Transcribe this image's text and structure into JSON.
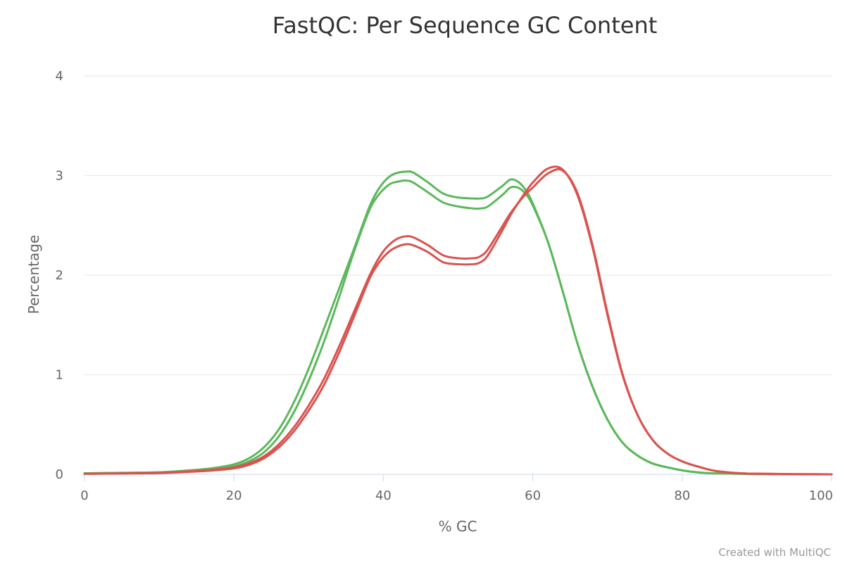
{
  "chart_data": {
    "type": "line",
    "title": "FastQC: Per Sequence GC Content",
    "xlabel": "% GC",
    "ylabel": "Percentage",
    "xlim": [
      0,
      100
    ],
    "ylim": [
      0,
      4
    ],
    "x_ticks": [
      "0",
      "20",
      "40",
      "60",
      "80",
      "100"
    ],
    "y_ticks": [
      "0",
      "1",
      "2",
      "3",
      "4"
    ],
    "grid": true,
    "x": [
      0,
      5,
      10,
      14,
      17,
      20,
      22,
      24,
      26,
      28,
      30,
      32,
      34,
      36,
      38,
      39,
      40,
      41,
      42,
      43,
      44,
      46,
      48,
      50,
      52,
      53,
      54,
      56,
      57,
      58,
      59,
      60,
      62,
      64,
      66,
      68,
      70,
      72,
      74,
      76,
      78,
      80,
      82,
      84,
      86,
      88,
      90,
      95,
      100
    ],
    "series": [
      {
        "color": "#5cb85c",
        "values": [
          0.01,
          0.015,
          0.02,
          0.04,
          0.06,
          0.1,
          0.16,
          0.27,
          0.45,
          0.72,
          1.06,
          1.45,
          1.85,
          2.25,
          2.66,
          2.82,
          2.93,
          3.0,
          3.03,
          3.04,
          3.03,
          2.93,
          2.82,
          2.78,
          2.77,
          2.77,
          2.79,
          2.9,
          2.96,
          2.94,
          2.86,
          2.72,
          2.34,
          1.84,
          1.31,
          0.88,
          0.55,
          0.32,
          0.19,
          0.11,
          0.07,
          0.04,
          0.02,
          0.01,
          0.008,
          0.005,
          0.003,
          0.001,
          0.0
        ]
      },
      {
        "color": "#5cb85c",
        "values": [
          0.01,
          0.015,
          0.02,
          0.035,
          0.05,
          0.08,
          0.13,
          0.22,
          0.38,
          0.62,
          0.94,
          1.32,
          1.76,
          2.22,
          2.63,
          2.77,
          2.86,
          2.92,
          2.94,
          2.95,
          2.93,
          2.83,
          2.73,
          2.69,
          2.67,
          2.67,
          2.69,
          2.81,
          2.88,
          2.88,
          2.82,
          2.7,
          2.34,
          1.84,
          1.31,
          0.88,
          0.55,
          0.32,
          0.19,
          0.11,
          0.07,
          0.04,
          0.02,
          0.01,
          0.008,
          0.005,
          0.003,
          0.001,
          0.0
        ]
      },
      {
        "color": "#d9534f",
        "values": [
          0.005,
          0.01,
          0.015,
          0.03,
          0.045,
          0.07,
          0.11,
          0.18,
          0.3,
          0.47,
          0.69,
          0.95,
          1.27,
          1.62,
          1.97,
          2.12,
          2.24,
          2.32,
          2.37,
          2.39,
          2.38,
          2.3,
          2.2,
          2.17,
          2.17,
          2.19,
          2.26,
          2.5,
          2.62,
          2.72,
          2.81,
          2.88,
          3.02,
          3.05,
          2.82,
          2.3,
          1.62,
          1.01,
          0.6,
          0.35,
          0.21,
          0.13,
          0.08,
          0.04,
          0.02,
          0.01,
          0.006,
          0.002,
          0.0
        ]
      },
      {
        "color": "#d9534f",
        "values": [
          0.005,
          0.008,
          0.012,
          0.025,
          0.038,
          0.06,
          0.095,
          0.16,
          0.27,
          0.43,
          0.64,
          0.89,
          1.21,
          1.57,
          1.94,
          2.08,
          2.18,
          2.25,
          2.29,
          2.31,
          2.3,
          2.23,
          2.13,
          2.11,
          2.11,
          2.13,
          2.2,
          2.46,
          2.6,
          2.72,
          2.83,
          2.93,
          3.07,
          3.06,
          2.8,
          2.28,
          1.6,
          1.0,
          0.6,
          0.35,
          0.21,
          0.13,
          0.08,
          0.04,
          0.02,
          0.01,
          0.006,
          0.002,
          0.0
        ]
      }
    ]
  },
  "credit": "Created with MultiQC"
}
